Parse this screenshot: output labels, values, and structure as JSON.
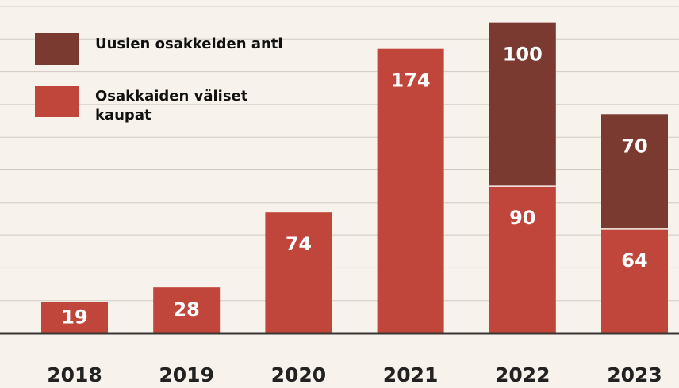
{
  "chart_data": {
    "type": "stacked_bar",
    "categories": [
      "2018",
      "2019",
      "2020",
      "2021",
      "2022",
      "2023"
    ],
    "series": [
      {
        "name": "Osakkaiden väliset kaupat",
        "color": "#c0453a",
        "values": [
          19,
          28,
          74,
          174,
          90,
          64
        ]
      },
      {
        "name": "Uusien osakkeiden anti",
        "color": "#7b3a2f",
        "values": [
          null,
          null,
          null,
          null,
          100,
          70
        ]
      }
    ],
    "ylim": [
      0,
      200
    ],
    "yticks": [
      0,
      20,
      40,
      60,
      80,
      100,
      120,
      140,
      160,
      180,
      200
    ],
    "grid": true
  }
}
